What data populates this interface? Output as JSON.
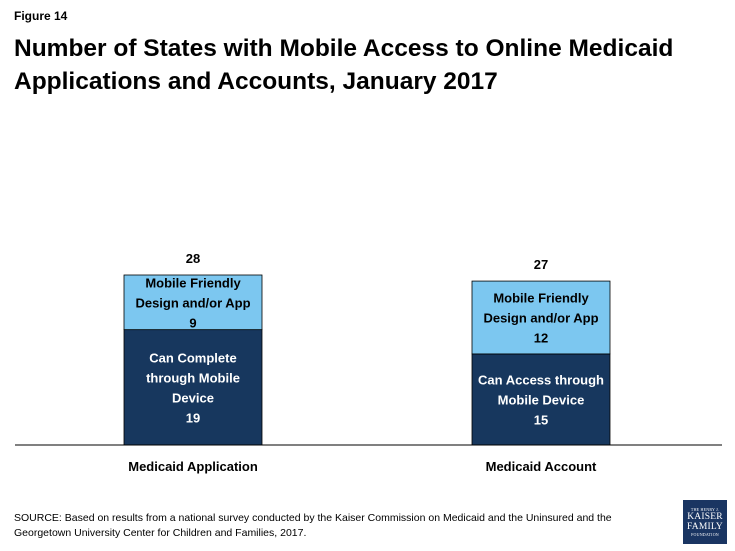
{
  "figure_label": "Figure 14",
  "title": "Number of States with Mobile Access to Online Medicaid Applications and Accounts, January 2017",
  "source": "SOURCE: Based on results from a national survey conducted by the Kaiser Commission on Medicaid and the Uninsured and the Georgetown University Center for Children and Families, 2017.",
  "logo": {
    "line1": "THE HENRY J.",
    "line2": "KAISER",
    "line3": "FAMILY",
    "line4": "FOUNDATION"
  },
  "colors": {
    "dark": "#17375e",
    "light": "#7cc7f0",
    "axis": "#000000"
  },
  "chart_data": {
    "type": "bar",
    "stacked": true,
    "categories": [
      "Medicaid Application",
      "Medicaid Account"
    ],
    "totals": [
      28,
      27
    ],
    "ylim": [
      0,
      28
    ],
    "grid": false,
    "segments": [
      [
        {
          "lines": [
            "Can Complete",
            "through Mobile",
            "Device"
          ],
          "value": 19,
          "color": "#17375e",
          "text_color": "#ffffff"
        },
        {
          "lines": [
            "Mobile Friendly",
            "Design and/or App"
          ],
          "value": 9,
          "color": "#7cc7f0",
          "text_color": "#000000"
        }
      ],
      [
        {
          "lines": [
            "Can Access through",
            "Mobile Device"
          ],
          "value": 15,
          "color": "#17375e",
          "text_color": "#ffffff"
        },
        {
          "lines": [
            "Mobile Friendly",
            "Design and/or App"
          ],
          "value": 12,
          "color": "#7cc7f0",
          "text_color": "#000000"
        }
      ]
    ]
  }
}
